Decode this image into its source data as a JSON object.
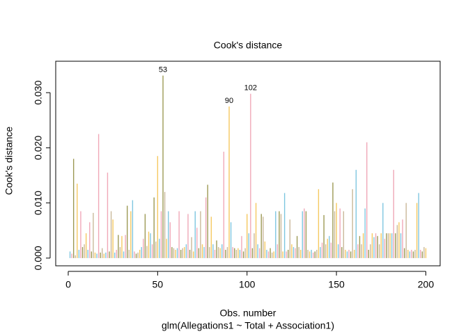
{
  "chart_data": {
    "type": "spike",
    "title": "Cook's distance",
    "ylabel": "Cook's distance",
    "xlabel": "Obs. number",
    "subtitle": "glm(Allegations1 ~ Total + Association1)",
    "colors": [
      "#7fc6e0",
      "#f0a8b8",
      "#9d9a55",
      "#c9b89a",
      "#f5c860"
    ],
    "xlim": [
      -7,
      208
    ],
    "ylim": [
      -0.0014,
      0.0357
    ],
    "xticks": [
      0,
      50,
      100,
      150,
      200
    ],
    "yticks": [
      {
        "value": 0,
        "label": "0.000"
      },
      {
        "value": 0.01,
        "label": "0.010"
      },
      {
        "value": 0.02,
        "label": "0.020"
      },
      {
        "value": 0.03,
        "label": "0.030"
      }
    ],
    "x": [
      1,
      2,
      3,
      4,
      5,
      6,
      7,
      8,
      9,
      10,
      11,
      12,
      13,
      14,
      15,
      16,
      17,
      18,
      19,
      20,
      21,
      22,
      23,
      24,
      25,
      26,
      27,
      28,
      29,
      30,
      31,
      32,
      33,
      34,
      35,
      36,
      37,
      38,
      39,
      40,
      41,
      42,
      43,
      44,
      45,
      46,
      47,
      48,
      49,
      50,
      51,
      52,
      53,
      54,
      55,
      56,
      57,
      58,
      59,
      60,
      61,
      62,
      63,
      64,
      65,
      66,
      67,
      68,
      69,
      70,
      71,
      72,
      73,
      74,
      75,
      76,
      77,
      78,
      79,
      80,
      81,
      82,
      83,
      84,
      85,
      86,
      87,
      88,
      89,
      90,
      91,
      92,
      93,
      94,
      95,
      96,
      97,
      98,
      99,
      100,
      101,
      102,
      103,
      104,
      105,
      106,
      107,
      108,
      109,
      110,
      111,
      112,
      113,
      114,
      115,
      116,
      117,
      118,
      119,
      120,
      121,
      122,
      123,
      124,
      125,
      126,
      127,
      128,
      129,
      130,
      131,
      132,
      133,
      134,
      135,
      136,
      137,
      138,
      139,
      140,
      141,
      142,
      143,
      144,
      145,
      146,
      147,
      148,
      149,
      150,
      151,
      152,
      153,
      154,
      155,
      156,
      157,
      158,
      159,
      160,
      161,
      162,
      163,
      164,
      165,
      166,
      167,
      168,
      169,
      170,
      171,
      172,
      173,
      174,
      175,
      176,
      177,
      178,
      179,
      180,
      181,
      182,
      183,
      184,
      185,
      186,
      187,
      188,
      189,
      190,
      191,
      192,
      193,
      194,
      195,
      196,
      197,
      198,
      199,
      200
    ],
    "values": [
      0.0012,
      0.0008,
      0.018,
      0.0005,
      0.0135,
      0.0015,
      0.0085,
      0.002,
      0.0025,
      0.0045,
      0.0015,
      0.0065,
      0.0012,
      0.0082,
      0.001,
      0.0008,
      0.0225,
      0.001,
      0.0018,
      0.0008,
      0.001,
      0.0155,
      0.0012,
      0.0085,
      0.007,
      0.001,
      0.0015,
      0.0042,
      0.002,
      0.004,
      0.0012,
      0.0042,
      0.0095,
      0.0015,
      0.0085,
      0.0105,
      0.0012,
      0.0008,
      0.001,
      0.0015,
      0.002,
      0.0035,
      0.008,
      0.0022,
      0.0048,
      0.0045,
      0.0025,
      0.011,
      0.003,
      0.0185,
      0.0035,
      0.0085,
      0.0331,
      0.012,
      0.0035,
      0.0085,
      0.0065,
      0.002,
      0.0018,
      0.0015,
      0.0018,
      0.0085,
      0.0015,
      0.0018,
      0.002,
      0.0025,
      0.008,
      0.0015,
      0.0038,
      0.0012,
      0.0085,
      0.0055,
      0.0018,
      0.0085,
      0.0025,
      0.002,
      0.011,
      0.0133,
      0.002,
      0.0075,
      0.0025,
      0.0015,
      0.0032,
      0.002,
      0.0018,
      0.0025,
      0.0193,
      0.0015,
      0.002,
      0.0275,
      0.0065,
      0.002,
      0.0018,
      0.0015,
      0.0018,
      0.0015,
      0.004,
      0.0012,
      0.0018,
      0.008,
      0.0045,
      0.0298,
      0.0018,
      0.0045,
      0.01,
      0.0025,
      0.0018,
      0.008,
      0.0075,
      0.003,
      0.0015,
      0.0012,
      0.0018,
      0.001,
      0.0012,
      0.0085,
      0.0025,
      0.0085,
      0.008,
      0.0012,
      0.0118,
      0.0012,
      0.0015,
      0.007,
      0.0025,
      0.002,
      0.0018,
      0.004,
      0.002,
      0.0015,
      0.0085,
      0.009,
      0.0085,
      0.0015,
      0.0012,
      0.0015,
      0.001,
      0.0012,
      0.0015,
      0.0125,
      0.002,
      0.0028,
      0.0078,
      0.0025,
      0.0035,
      0.004,
      0.0028,
      0.0137,
      0.0085,
      0.01,
      0.0025,
      0.009,
      0.002,
      0.0085,
      0.0015,
      0.0012,
      0.0015,
      0.0012,
      0.0125,
      0.0015,
      0.016,
      0.0025,
      0.004,
      0.0025,
      0.0045,
      0.009,
      0.021,
      0.0015,
      0.0025,
      0.0045,
      0.0038,
      0.0045,
      0.004,
      0.0025,
      0.0045,
      0.01,
      0.0035,
      0.0045,
      0.0045,
      0.0045,
      0.0045,
      0.016,
      0.0045,
      0.006,
      0.0065,
      0.0045,
      0.007,
      0.0018,
      0.01,
      0.0015,
      0.0012,
      0.0015,
      0.0012,
      0.0015,
      0.01,
      0.0118,
      0.0015,
      0.0012,
      0.002,
      0.0018
    ],
    "annotations": [
      {
        "text": "53",
        "x": 53
      },
      {
        "text": "90",
        "x": 90
      },
      {
        "text": "102",
        "x": 102
      }
    ]
  }
}
